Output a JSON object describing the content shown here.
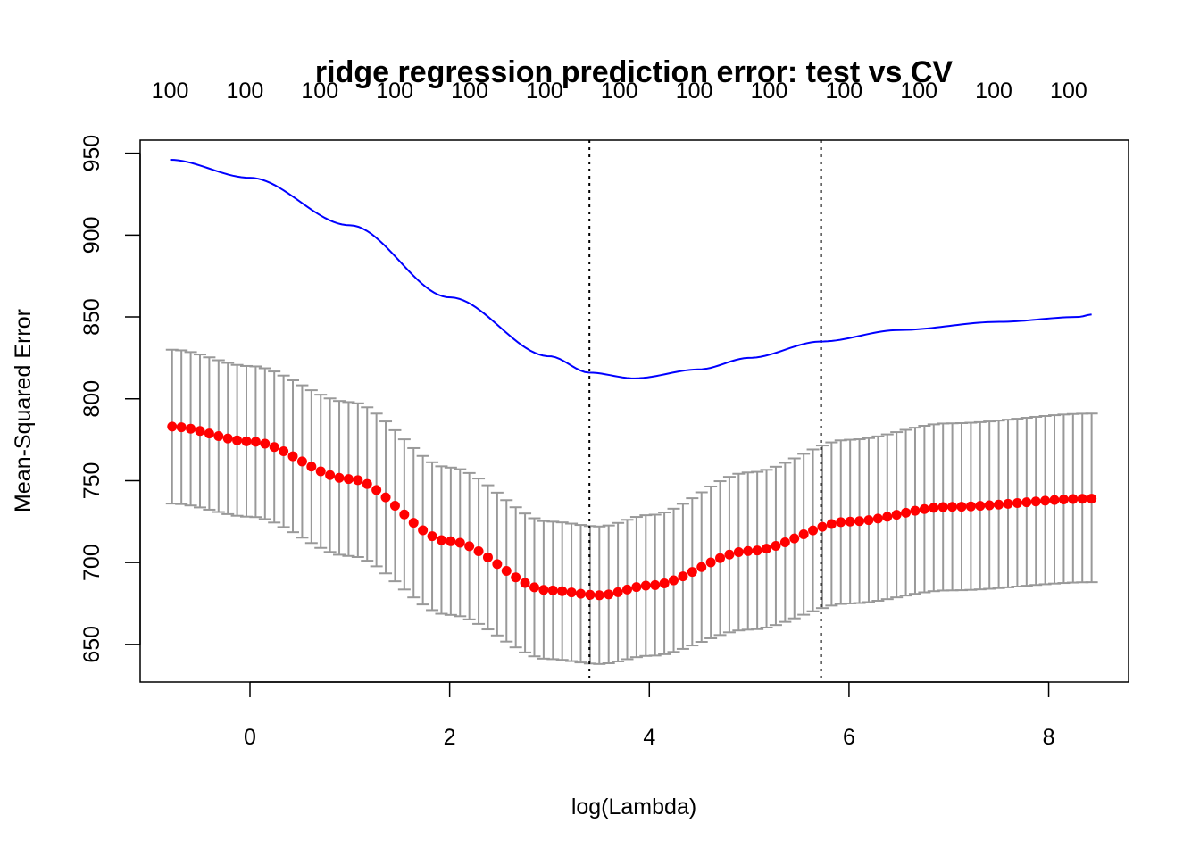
{
  "chart_data": {
    "type": "scatter",
    "title": "ridge regression prediction error: test vs CV",
    "xlabel": "log(Lambda)",
    "ylabel": "Mean-Squared Error",
    "xlim": [
      -1.1,
      8.8
    ],
    "ylim": [
      627,
      958
    ],
    "x_ticks": [
      0,
      2,
      4,
      6,
      8
    ],
    "x_tick_labels": [
      "0",
      "2",
      "4",
      "6",
      "8"
    ],
    "y_ticks": [
      650,
      700,
      750,
      800,
      850,
      900,
      950
    ],
    "y_tick_labels": [
      "650",
      "700",
      "750",
      "800",
      "850",
      "900",
      "950"
    ],
    "top_axis": {
      "positions": [
        -0.8,
        -0.05,
        0.7,
        1.45,
        2.2,
        2.95,
        3.7,
        4.45,
        5.2,
        5.95,
        6.7,
        7.45,
        8.2
      ],
      "labels": [
        "100",
        "100",
        "100",
        "100",
        "100",
        "100",
        "100",
        "100",
        "100",
        "100",
        "100",
        "100",
        "100"
      ]
    },
    "vlines": [
      3.4,
      5.72
    ],
    "grid": false,
    "legend": "none",
    "colors": {
      "cv_points": "#ff0000",
      "error_bars": "#999999",
      "test_curve": "#0000ff",
      "vlines": "#000000"
    },
    "series": [
      {
        "type": "points_with_errorbars",
        "x_range": [
          -0.78,
          8.43
        ],
        "points": 100,
        "keypoints": [
          {
            "x": -0.78,
            "y": 783,
            "lo": 736,
            "hi": 830
          },
          {
            "x": 0.0,
            "y": 774,
            "lo": 728,
            "hi": 820
          },
          {
            "x": 1.0,
            "y": 751,
            "lo": 704,
            "hi": 798
          },
          {
            "x": 2.0,
            "y": 713,
            "lo": 668,
            "hi": 758
          },
          {
            "x": 3.0,
            "y": 683,
            "lo": 641,
            "hi": 725
          },
          {
            "x": 3.5,
            "y": 680,
            "lo": 638,
            "hi": 722
          },
          {
            "x": 4.0,
            "y": 686,
            "lo": 643,
            "hi": 729
          },
          {
            "x": 5.0,
            "y": 707,
            "lo": 659,
            "hi": 755
          },
          {
            "x": 6.0,
            "y": 725,
            "lo": 675,
            "hi": 775
          },
          {
            "x": 7.0,
            "y": 734,
            "lo": 683,
            "hi": 785
          },
          {
            "x": 8.43,
            "y": 739,
            "lo": 688,
            "hi": 791
          }
        ]
      },
      {
        "type": "line",
        "points": [
          [
            -0.8,
            946
          ],
          [
            0.0,
            935
          ],
          [
            1.0,
            906
          ],
          [
            2.0,
            862
          ],
          [
            3.0,
            826
          ],
          [
            3.4,
            816
          ],
          [
            3.85,
            812.5
          ],
          [
            4.5,
            818
          ],
          [
            5.0,
            825
          ],
          [
            5.72,
            835
          ],
          [
            6.5,
            842
          ],
          [
            7.5,
            847
          ],
          [
            8.3,
            850
          ],
          [
            8.43,
            851.5
          ]
        ]
      }
    ]
  }
}
